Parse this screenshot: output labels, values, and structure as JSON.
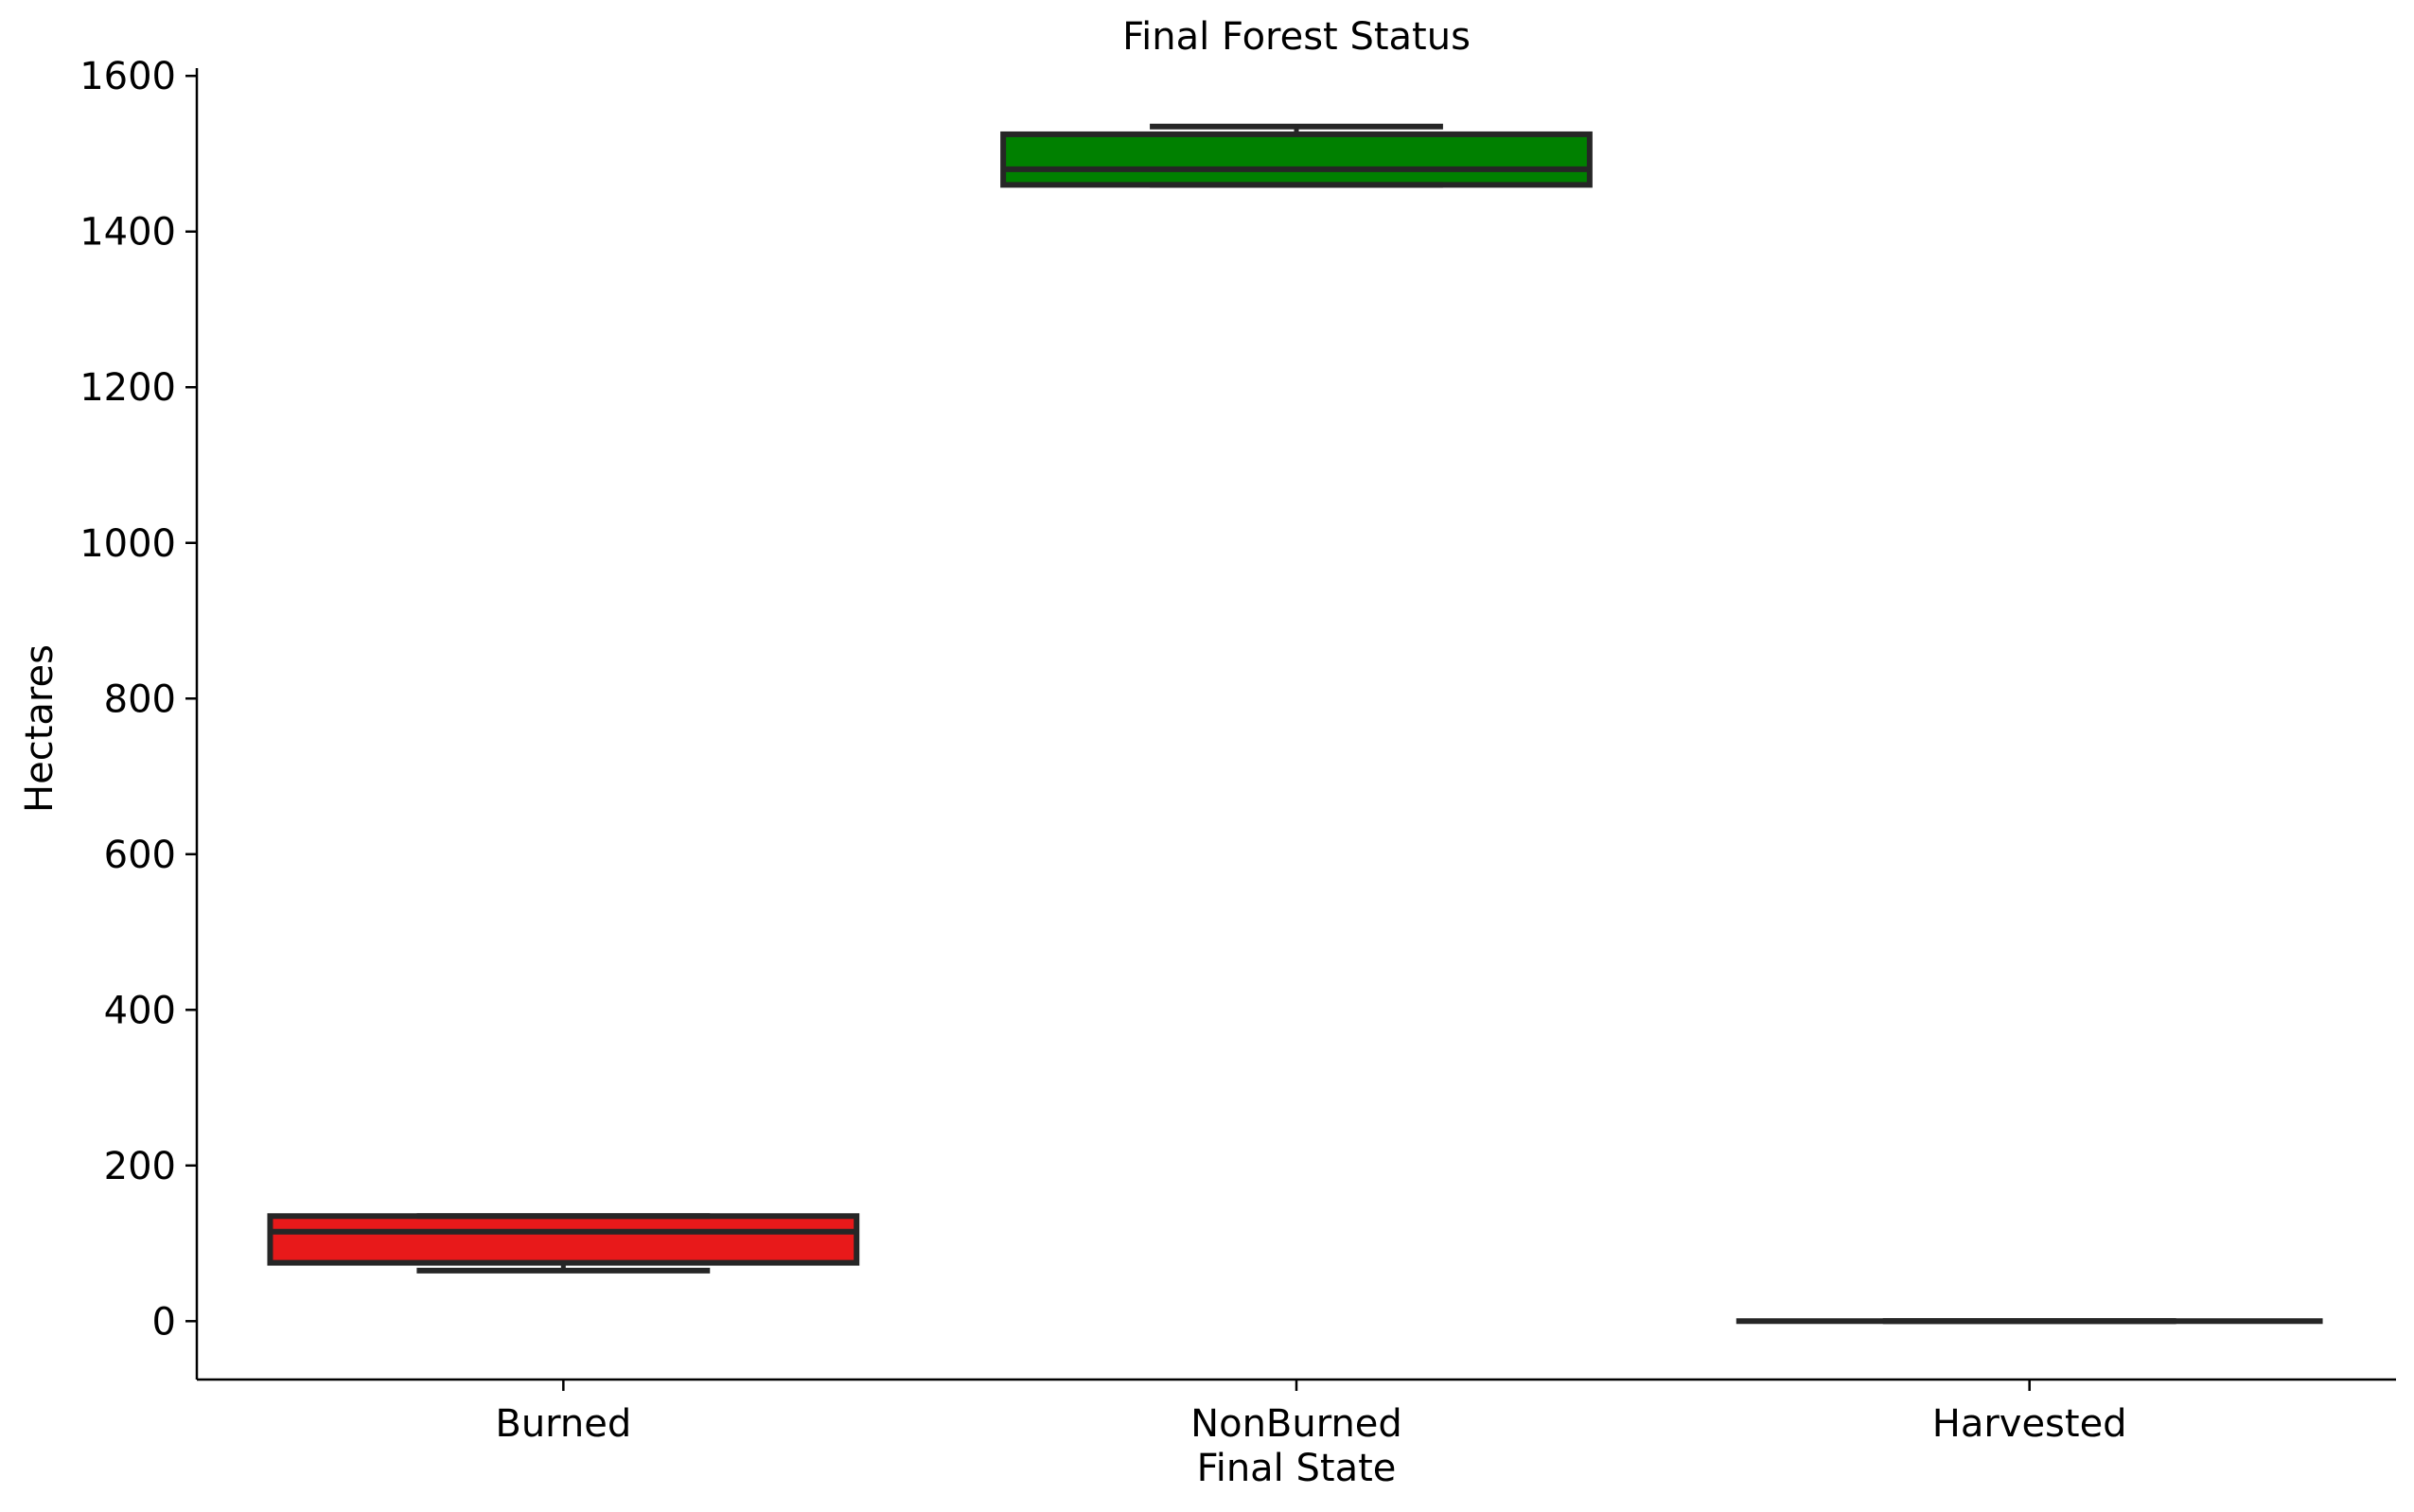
{
  "chart_data": {
    "type": "box",
    "title": "Final Forest Status",
    "xlabel": "Final State",
    "ylabel": "Hectares",
    "ylim": [
      -75,
      1610
    ],
    "yticks": [
      0,
      200,
      400,
      600,
      800,
      1000,
      1200,
      1400,
      1600
    ],
    "categories": [
      "Burned",
      "NonBurned",
      "Harvested"
    ],
    "boxes": [
      {
        "category": "Burned",
        "color": "#e8191a",
        "whisker_low": 65,
        "q1": 75,
        "median": 115,
        "q3": 135,
        "whisker_high": 135
      },
      {
        "category": "NonBurned",
        "color": "#008000",
        "whisker_low": 1460,
        "q1": 1460,
        "median": 1480,
        "q3": 1525,
        "whisker_high": 1535
      },
      {
        "category": "Harvested",
        "color": "#e8191a",
        "whisker_low": 0,
        "q1": 0,
        "median": 0,
        "q3": 0,
        "whisker_high": 0
      }
    ],
    "grid": false,
    "legend": "none",
    "box_edge_color": "#262626"
  }
}
